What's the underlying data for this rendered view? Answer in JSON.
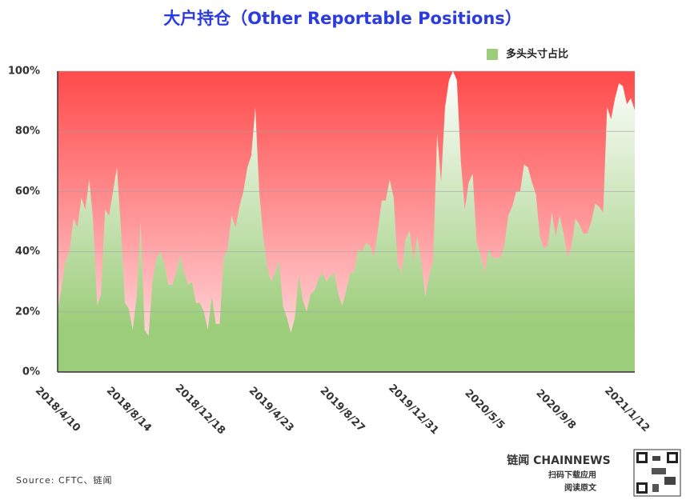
{
  "chart_data": {
    "type": "area",
    "title": "大户持仓（Other Reportable Positions）",
    "categories": [
      "2018/4/10",
      null,
      null,
      null,
      null,
      null,
      null,
      null,
      null,
      null,
      null,
      null,
      null,
      null,
      null,
      null,
      null,
      null,
      "2018/8/14",
      null,
      null,
      null,
      null,
      null,
      null,
      null,
      null,
      null,
      null,
      null,
      null,
      null,
      null,
      null,
      null,
      null,
      "2018/12/18",
      null,
      null,
      null,
      null,
      null,
      null,
      null,
      null,
      null,
      null,
      null,
      null,
      null,
      null,
      null,
      null,
      null,
      "2019/4/23",
      null,
      null,
      null,
      null,
      null,
      null,
      null,
      null,
      null,
      null,
      null,
      null,
      null,
      null,
      null,
      null,
      null,
      "2019/8/27",
      null,
      null,
      null,
      null,
      null,
      null,
      null,
      null,
      null,
      null,
      null,
      null,
      null,
      null,
      null,
      null,
      null,
      "2019/12/31",
      null,
      null,
      null,
      null,
      null,
      null,
      null,
      null,
      null,
      null,
      null,
      null,
      null,
      null,
      null,
      null,
      null,
      "2020/5/5",
      null,
      null,
      null,
      null,
      null,
      null,
      null,
      null,
      null,
      null,
      null,
      null,
      null,
      null,
      null,
      null,
      null,
      "2020/9/8",
      null,
      null,
      null,
      null,
      null,
      null,
      null,
      null,
      null,
      null,
      null,
      null,
      null,
      null,
      null,
      null,
      null,
      "2021/1/12",
      null,
      null
    ],
    "series": [
      {
        "name": "多头头寸占比",
        "color": "#9ccd7a",
        "values": [
          20,
          28,
          37,
          40,
          51,
          48,
          58,
          54,
          64,
          50,
          22,
          26,
          54,
          52,
          60,
          68,
          48,
          23,
          21,
          14,
          25,
          50,
          14,
          12,
          30,
          38,
          40,
          36,
          29,
          29,
          33,
          39,
          33,
          29,
          30,
          23,
          23,
          20,
          14,
          25,
          16,
          16,
          38,
          41,
          52,
          48,
          55,
          60,
          68,
          72,
          88,
          60,
          45,
          35,
          30,
          33,
          37,
          22,
          18,
          13,
          18,
          32,
          24,
          20,
          26,
          27,
          31,
          33,
          30,
          32,
          33,
          26,
          22,
          27,
          33,
          33,
          41,
          40,
          43,
          42,
          38,
          47,
          57,
          57,
          64,
          58,
          36,
          33,
          44,
          47,
          37,
          45,
          37,
          25,
          32,
          37,
          79,
          63,
          88,
          97,
          100,
          97,
          70,
          54,
          63,
          66,
          43,
          39,
          33,
          41,
          38,
          38,
          38,
          42,
          52,
          55,
          60,
          60,
          69,
          68,
          63,
          59,
          45,
          41,
          42,
          53,
          45,
          52,
          46,
          38,
          42,
          51,
          49,
          46,
          46,
          50,
          56,
          55,
          53,
          88,
          84,
          91,
          96,
          95,
          89,
          91,
          87
        ]
      }
    ],
    "background_color": "#ff4a4a",
    "ylim": [
      0,
      100
    ],
    "yticks": [
      {
        "value": 0,
        "label": "0%"
      },
      {
        "value": 20,
        "label": "20%"
      },
      {
        "value": 40,
        "label": "40%"
      },
      {
        "value": 60,
        "label": "60%"
      },
      {
        "value": 80,
        "label": "80%"
      },
      {
        "value": 100,
        "label": "100%"
      }
    ],
    "grid": true,
    "legend": "top-right",
    "source": "Source: CFTC、链闻"
  },
  "branding": {
    "logo": "链闻 CHAINNEWS",
    "line1": "扫码下载应用",
    "line2": "阅读原文"
  }
}
